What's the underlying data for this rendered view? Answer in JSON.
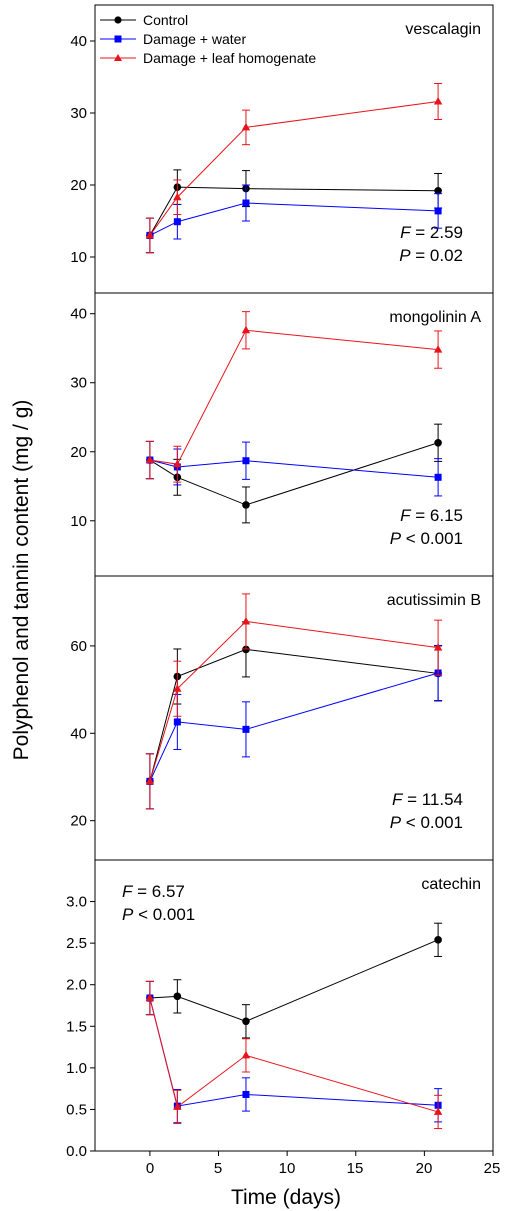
{
  "figure": {
    "ylabel": "Polyphenol and tannin content (mg / g)",
    "xlabel": "Time (days)",
    "xticks": [
      "0",
      "5",
      "10",
      "15",
      "20",
      "25"
    ],
    "legend": [
      "Control",
      "Damage + water",
      "Damage + leaf homogenate"
    ]
  },
  "colors": {
    "control": "#000000",
    "water": "#0000ff",
    "homogenate": "#e8141b",
    "errorbar_homogenate": "#e8141b"
  },
  "chart_data": [
    {
      "type": "line",
      "title": "vescalagin",
      "x": [
        0,
        2,
        7,
        21
      ],
      "xlim": [
        -4,
        25
      ],
      "ylim": [
        5,
        45
      ],
      "yticks": [
        10,
        20,
        30,
        40
      ],
      "ytick_labels": [
        "10",
        "20",
        "30",
        "40"
      ],
      "stats": {
        "F": "2.59",
        "P": "0.02",
        "F_prefix": "F",
        "F_rel": " = ",
        "P_prefix": "P",
        "P_rel": " = "
      },
      "stats_pos": "bottom-right",
      "series": [
        {
          "name": "Control",
          "marker": "circle",
          "values": [
            13.0,
            19.7,
            19.5,
            19.2
          ],
          "errors": [
            2.4,
            2.4,
            2.5,
            2.4
          ]
        },
        {
          "name": "Damage + water",
          "marker": "square",
          "values": [
            13.0,
            14.9,
            17.5,
            16.4
          ],
          "errors": [
            2.4,
            2.4,
            2.5,
            2.4
          ]
        },
        {
          "name": "Damage + leaf homogenate",
          "marker": "triangle",
          "values": [
            13.0,
            18.3,
            28.0,
            31.6
          ],
          "errors": [
            2.4,
            2.4,
            2.4,
            2.5
          ]
        }
      ]
    },
    {
      "type": "line",
      "title": "mongolinin A",
      "x": [
        0,
        2,
        7,
        21
      ],
      "xlim": [
        -4,
        25
      ],
      "ylim": [
        2,
        43
      ],
      "yticks": [
        10,
        20,
        30,
        40
      ],
      "ytick_labels": [
        "10",
        "20",
        "30",
        "40"
      ],
      "stats": {
        "F": "6.15",
        "P": "0.001",
        "F_prefix": "F",
        "F_rel": " = ",
        "P_prefix": "P",
        "P_rel": " < "
      },
      "stats_pos": "bottom-right",
      "series": [
        {
          "name": "Control",
          "marker": "circle",
          "values": [
            18.8,
            16.3,
            12.3,
            21.3
          ],
          "errors": [
            2.7,
            2.6,
            2.6,
            2.7
          ]
        },
        {
          "name": "Damage + water",
          "marker": "square",
          "values": [
            18.8,
            17.8,
            18.7,
            16.3
          ],
          "errors": [
            2.7,
            2.6,
            2.7,
            2.7
          ]
        },
        {
          "name": "Damage + leaf homogenate",
          "marker": "triangle",
          "values": [
            18.8,
            18.2,
            37.6,
            34.8
          ],
          "errors": [
            2.7,
            2.6,
            2.7,
            2.7
          ]
        }
      ]
    },
    {
      "type": "line",
      "title": "acutissimin B",
      "x": [
        0,
        2,
        7,
        21
      ],
      "xlim": [
        -4,
        25
      ],
      "ylim": [
        11,
        76
      ],
      "yticks": [
        20,
        40,
        60
      ],
      "ytick_labels": [
        "20",
        "40",
        "60"
      ],
      "stats": {
        "F": "11.54",
        "P": "0.001",
        "F_prefix": "F",
        "F_rel": " = ",
        "P_prefix": "P",
        "P_rel": " < "
      },
      "stats_pos": "bottom-right",
      "series": [
        {
          "name": "Control",
          "marker": "circle",
          "values": [
            29.0,
            53.0,
            59.2,
            53.7
          ],
          "errors": [
            6.3,
            6.3,
            6.3,
            6.3
          ]
        },
        {
          "name": "Damage + water",
          "marker": "square",
          "values": [
            29.0,
            42.6,
            40.9,
            53.8
          ],
          "errors": [
            6.3,
            6.3,
            6.3,
            6.3
          ]
        },
        {
          "name": "Damage + leaf homogenate",
          "marker": "triangle",
          "values": [
            29.0,
            50.2,
            65.6,
            59.6
          ],
          "errors": [
            6.3,
            6.3,
            6.3,
            6.3
          ]
        }
      ]
    },
    {
      "type": "line",
      "title": "catechin",
      "x": [
        0,
        2,
        7,
        21
      ],
      "xlim": [
        -4,
        25
      ],
      "ylim": [
        0,
        3.5
      ],
      "yticks": [
        0.0,
        0.5,
        1.0,
        1.5,
        2.0,
        2.5,
        3.0
      ],
      "ytick_labels": [
        "0.0",
        "0.5",
        "1.0",
        "1.5",
        "2.0",
        "2.5",
        "3.0"
      ],
      "stats": {
        "F": "6.57",
        "P": "0.001",
        "F_prefix": "F",
        "F_rel": " = ",
        "P_prefix": "P",
        "P_rel": " < "
      },
      "stats_pos": "top-left",
      "series": [
        {
          "name": "Control",
          "marker": "circle",
          "values": [
            1.84,
            1.86,
            1.56,
            2.54
          ],
          "errors": [
            0.2,
            0.2,
            0.2,
            0.2
          ]
        },
        {
          "name": "Damage + water",
          "marker": "square",
          "values": [
            1.84,
            0.54,
            0.68,
            0.55
          ],
          "errors": [
            0.2,
            0.2,
            0.2,
            0.2
          ]
        },
        {
          "name": "Damage + leaf homogenate",
          "marker": "triangle",
          "values": [
            1.84,
            0.53,
            1.15,
            0.47
          ],
          "errors": [
            0.2,
            0.2,
            0.2,
            0.2
          ]
        }
      ]
    }
  ]
}
